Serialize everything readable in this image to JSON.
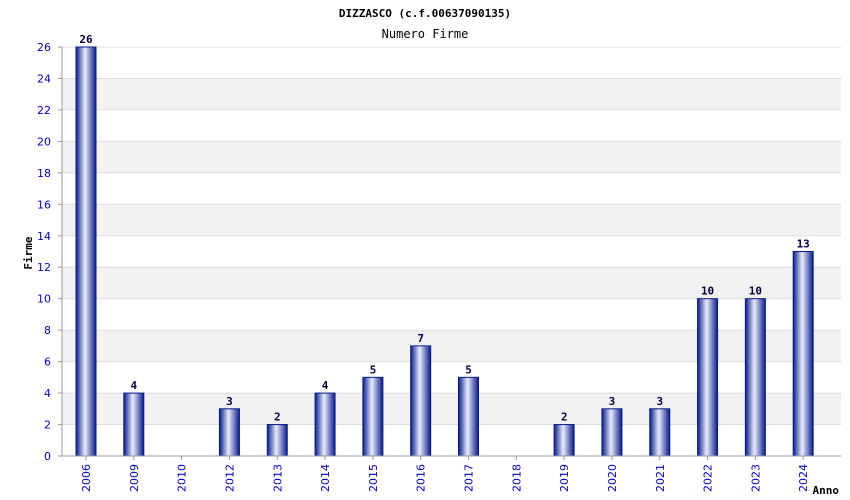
{
  "chart_data": {
    "type": "bar",
    "title": "DIZZASCO (c.f.00637090135)",
    "subtitle": "Numero Firme",
    "xlabel": "Anno",
    "ylabel": "Firme",
    "categories": [
      "2006",
      "2009",
      "2010",
      "2012",
      "2013",
      "2014",
      "2015",
      "2016",
      "2017",
      "2018",
      "2019",
      "2020",
      "2021",
      "2022",
      "2023",
      "2024"
    ],
    "values": [
      26,
      4,
      0,
      3,
      2,
      4,
      5,
      7,
      5,
      0,
      2,
      3,
      3,
      10,
      10,
      13
    ],
    "data_labels": [
      "26",
      "4",
      "",
      "3",
      "2",
      "4",
      "5",
      "7",
      "5",
      "",
      "2",
      "3",
      "3",
      "10",
      "10",
      "13"
    ],
    "ylim": [
      0,
      26
    ],
    "yticks": [
      0,
      2,
      4,
      6,
      8,
      10,
      12,
      14,
      16,
      18,
      20,
      22,
      24,
      26
    ],
    "grid": true,
    "bar_color": "#1a2a99",
    "bar_highlight": "#eef0ff",
    "band_color": "#f2f2f2"
  }
}
